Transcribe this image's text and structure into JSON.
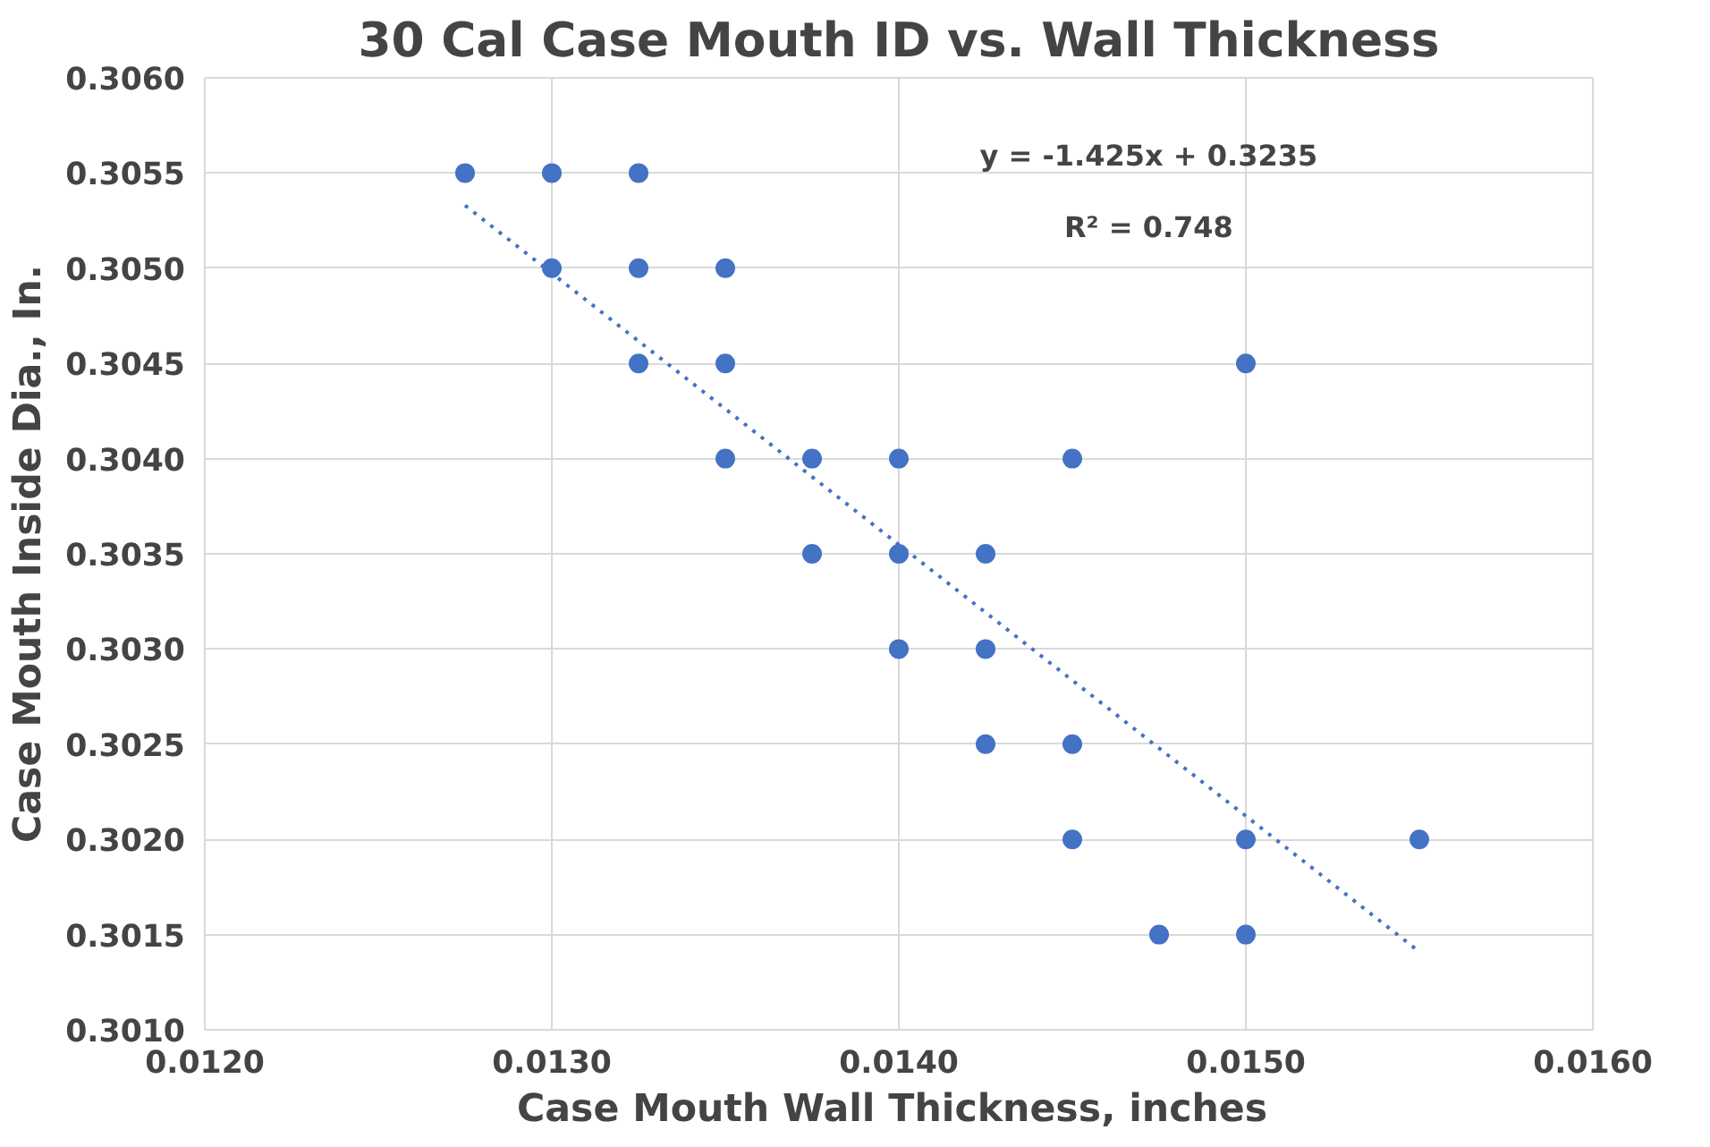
{
  "chart_data": {
    "type": "scatter",
    "title": "30 Cal Case Mouth ID vs. Wall Thickness",
    "xlabel": "Case Mouth  Wall Thickness, inches",
    "ylabel": "Case Mouth Inside Dia., In.",
    "series": [
      {
        "color": "#4472c4",
        "marker": "circle",
        "x": [
          0.01275,
          0.013,
          0.01325,
          0.013,
          0.01325,
          0.0135,
          0.01325,
          0.0135,
          0.015,
          0.0135,
          0.01375,
          0.014,
          0.0145,
          0.01375,
          0.014,
          0.01425,
          0.014,
          0.01425,
          0.01425,
          0.0145,
          0.0145,
          0.015,
          0.0155,
          0.01475,
          0.015
        ],
        "values": [
          0.3055,
          0.3055,
          0.3055,
          0.305,
          0.305,
          0.305,
          0.3045,
          0.3045,
          0.3045,
          0.304,
          0.304,
          0.304,
          0.304,
          0.3035,
          0.3035,
          0.3035,
          0.303,
          0.303,
          0.3025,
          0.3025,
          0.302,
          0.302,
          0.302,
          0.3015,
          0.3015
        ]
      },
      {
        "type": "line",
        "color": "#4472c4",
        "line_style": "dotted",
        "x": [
          0.01275,
          0.0155
        ],
        "values": [
          0.30533,
          0.30141
        ]
      }
    ],
    "annotations": [
      "y = -1.425x + 0.3235",
      "R² = 0.748"
    ],
    "xlim": [
      0.012,
      0.016
    ],
    "xticks": [
      {
        "value": 0.012,
        "label": "0.0120"
      },
      {
        "value": 0.013,
        "label": "0.0130"
      },
      {
        "value": 0.014,
        "label": "0.0140"
      },
      {
        "value": 0.015,
        "label": "0.0150"
      },
      {
        "value": 0.016,
        "label": "0.0160"
      }
    ],
    "ylim": [
      0.301,
      0.306
    ],
    "yticks": [
      {
        "value": 0.301,
        "label": "0.3010"
      },
      {
        "value": 0.3015,
        "label": "0.3015"
      },
      {
        "value": 0.302,
        "label": "0.3020"
      },
      {
        "value": 0.3025,
        "label": "0.3025"
      },
      {
        "value": 0.303,
        "label": "0.3030"
      },
      {
        "value": 0.3035,
        "label": "0.3035"
      },
      {
        "value": 0.304,
        "label": "0.3040"
      },
      {
        "value": 0.3045,
        "label": "0.3045"
      },
      {
        "value": 0.305,
        "label": "0.3050"
      },
      {
        "value": 0.3055,
        "label": "0.3055"
      },
      {
        "value": 0.306,
        "label": "0.3060"
      }
    ],
    "grid": true
  }
}
